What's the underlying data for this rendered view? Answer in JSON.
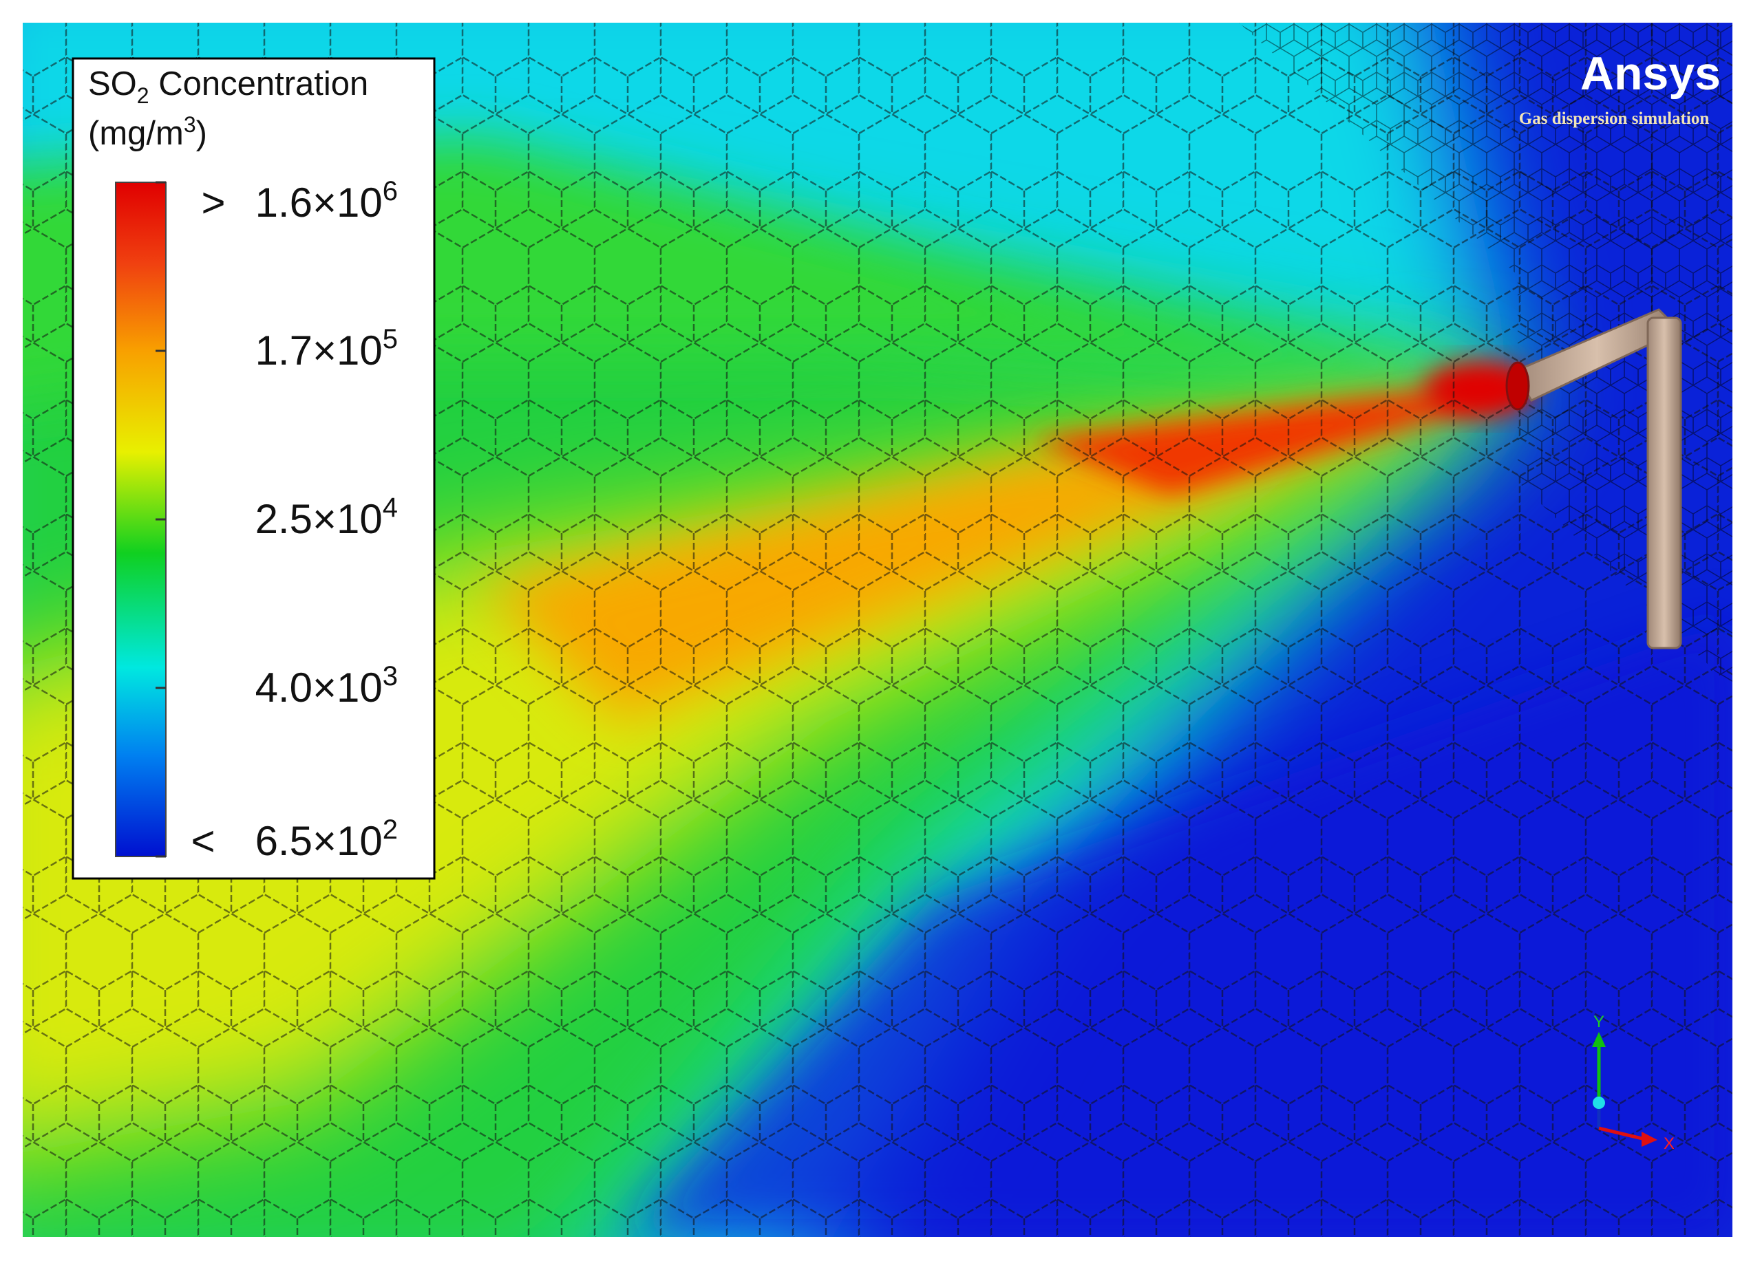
{
  "legend": {
    "title": {
      "main": "SO",
      "sub": "2",
      "rest": " Concentration"
    },
    "unit": {
      "main": "(mg/m",
      "sup": "3",
      "rest": ")"
    },
    "labels": [
      {
        "prefix": ">",
        "mantissa": "1.6×10",
        "exponent": "6"
      },
      {
        "mantissa": "1.7×10",
        "exponent": "5"
      },
      {
        "mantissa": "2.5×10",
        "exponent": "4"
      },
      {
        "mantissa": "4.0×10",
        "exponent": "3"
      },
      {
        "prefix": "<",
        "mantissa": "6.5×10",
        "exponent": "2"
      }
    ]
  },
  "brand": {
    "logo": "Ansys",
    "subtitle": "Gas dispersion simulation"
  },
  "axes": {
    "y": "Y",
    "x": "X"
  }
}
